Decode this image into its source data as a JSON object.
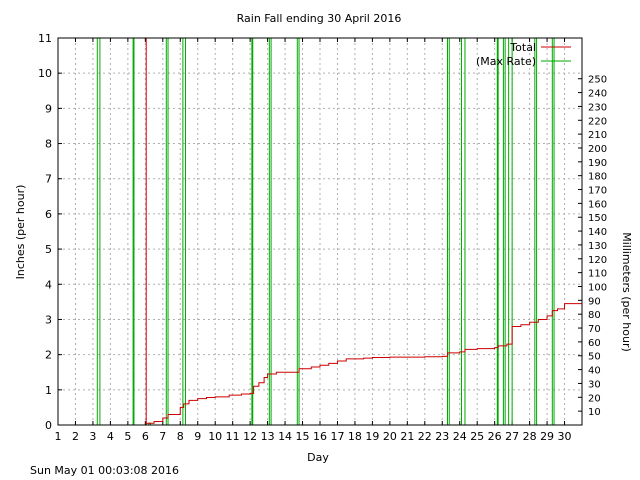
{
  "chart_data": {
    "type": "line",
    "title": "Rain Fall ending 30 April 2016",
    "xlabel": "Day",
    "ylabel": "Inches (per hour)",
    "y2label": "Millimeters (per hour)",
    "xlim": [
      1,
      31
    ],
    "ylim": [
      0,
      11
    ],
    "y2lim": [
      0,
      279.4
    ],
    "x_ticks": [
      "1",
      "2",
      "3",
      "4",
      "5",
      "6",
      "7",
      "8",
      "9",
      "10",
      "11",
      "12",
      "13",
      "14",
      "15",
      "16",
      "17",
      "18",
      "19",
      "20",
      "21",
      "22",
      "23",
      "24",
      "25",
      "26",
      "27",
      "28",
      "29",
      "30"
    ],
    "y_ticks": [
      "0",
      "1",
      "2",
      "3",
      "4",
      "5",
      "6",
      "7",
      "8",
      "9",
      "10",
      "11"
    ],
    "y2_ticks": [
      "10",
      "20",
      "30",
      "40",
      "50",
      "60",
      "70",
      "80",
      "90",
      "100",
      "110",
      "120",
      "130",
      "140",
      "150",
      "160",
      "170",
      "180",
      "190",
      "200",
      "210",
      "220",
      "230",
      "240",
      "250"
    ],
    "grid": true,
    "legend_position": "top-right",
    "series": [
      {
        "name": "Total",
        "color": "#cc0000",
        "x": [
          6.0,
          6.05,
          6.5,
          7.0,
          7.3,
          7.6,
          8.0,
          8.2,
          8.5,
          9.0,
          9.5,
          10.0,
          10.8,
          11.5,
          12.0,
          12.2,
          12.5,
          12.8,
          13.0,
          13.5,
          14.0,
          14.8,
          15.5,
          16.0,
          16.5,
          17.0,
          17.5,
          18.5,
          19.0,
          20.0,
          21.0,
          22.0,
          23.0,
          23.3,
          24.0,
          24.3,
          25.0,
          26.0,
          26.2,
          26.7,
          27.0,
          27.5,
          28.0,
          28.5,
          29.0,
          29.3,
          29.6,
          30.0,
          31.0
        ],
        "y": [
          0,
          0.05,
          0.1,
          0.2,
          0.3,
          0.3,
          0.5,
          0.6,
          0.7,
          0.75,
          0.78,
          0.8,
          0.85,
          0.88,
          0.9,
          1.1,
          1.2,
          1.35,
          1.45,
          1.5,
          1.5,
          1.6,
          1.65,
          1.7,
          1.75,
          1.82,
          1.88,
          1.9,
          1.92,
          1.93,
          1.93,
          1.94,
          1.95,
          2.05,
          2.08,
          2.15,
          2.17,
          2.2,
          2.25,
          2.3,
          2.8,
          2.85,
          2.92,
          3.0,
          3.1,
          3.25,
          3.3,
          3.45,
          3.5
        ]
      },
      {
        "name": "(Max Rate)",
        "color": "#00aa00",
        "spikes": [
          {
            "x": 3.25,
            "y": 11,
            "x2": 3.4
          },
          {
            "x": 5.3,
            "y": 11,
            "x2": 5.35
          },
          {
            "x": 6.2,
            "y": 0.05,
            "x2": 6.3
          },
          {
            "x": 7.2,
            "y": 11,
            "x2": 7.3
          },
          {
            "x": 8.15,
            "y": 11,
            "x2": 8.3
          },
          {
            "x": 12.1,
            "y": 11,
            "x2": 12.15
          },
          {
            "x": 13.1,
            "y": 11,
            "x2": 13.2
          },
          {
            "x": 14.7,
            "y": 11,
            "x2": 14.8
          },
          {
            "x": 23.3,
            "y": 11,
            "x2": 23.4
          },
          {
            "x": 24.1,
            "y": 11,
            "x2": 24.3
          },
          {
            "x": 26.15,
            "y": 11,
            "x2": 26.2
          },
          {
            "x": 26.5,
            "y": 11,
            "x2": 26.6
          },
          {
            "x": 26.8,
            "y": 11,
            "x2": 27.0
          },
          {
            "x": 28.3,
            "y": 11,
            "x2": 28.4
          },
          {
            "x": 29.3,
            "y": 11,
            "x2": 29.4
          }
        ]
      }
    ]
  },
  "timestamp": "Sun May 01 00:03:08 2016"
}
